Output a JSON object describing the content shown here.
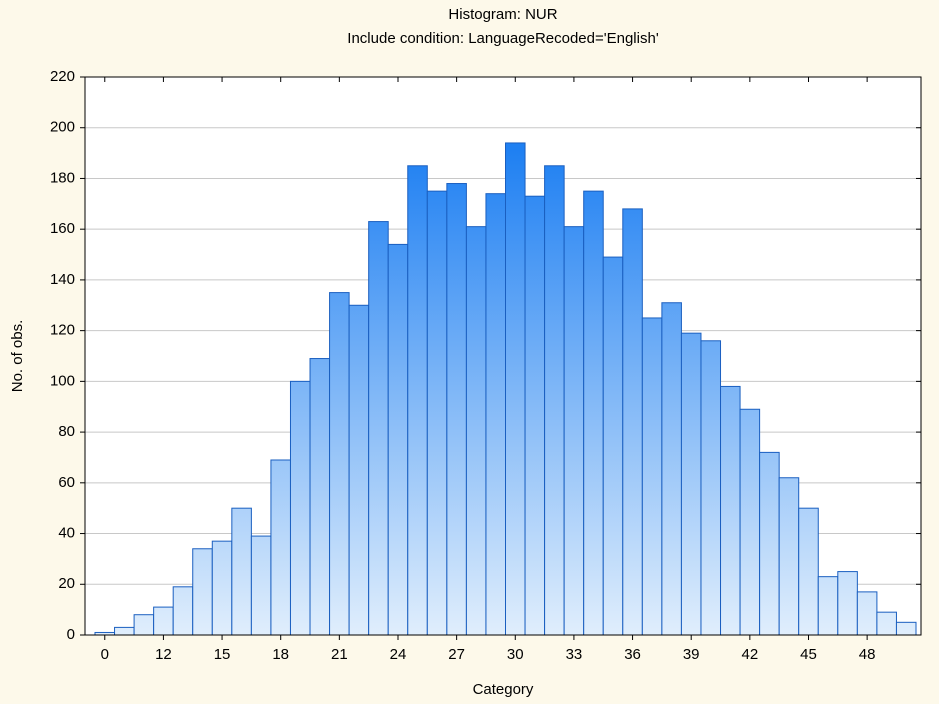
{
  "chart_data": {
    "type": "bar",
    "title": "Histogram: NUR",
    "subtitle": "Include condition: LanguageRecoded='English'",
    "x_label": "Category",
    "y_label": "No. of obs.",
    "categories": [
      0,
      null,
      null,
      12,
      null,
      null,
      15,
      null,
      null,
      18,
      null,
      null,
      21,
      null,
      null,
      24,
      null,
      null,
      27,
      null,
      null,
      30,
      null,
      null,
      33,
      null,
      null,
      36,
      null,
      null,
      39,
      null,
      null,
      42,
      null,
      null,
      45,
      null,
      null,
      48,
      null,
      null
    ],
    "values": [
      1,
      3,
      8,
      11,
      19,
      34,
      37,
      50,
      39,
      69,
      100,
      109,
      135,
      130,
      163,
      154,
      185,
      175,
      178,
      161,
      174,
      194,
      173,
      185,
      161,
      175,
      149,
      168,
      125,
      131,
      119,
      116,
      98,
      89,
      72,
      62,
      50,
      23,
      25,
      17,
      9,
      5
    ],
    "color": "#1f80f2",
    "ylim": [
      0,
      220
    ],
    "yticks": [
      0,
      20,
      40,
      60,
      80,
      100,
      120,
      140,
      160,
      180,
      200,
      220
    ],
    "grid": true
  }
}
